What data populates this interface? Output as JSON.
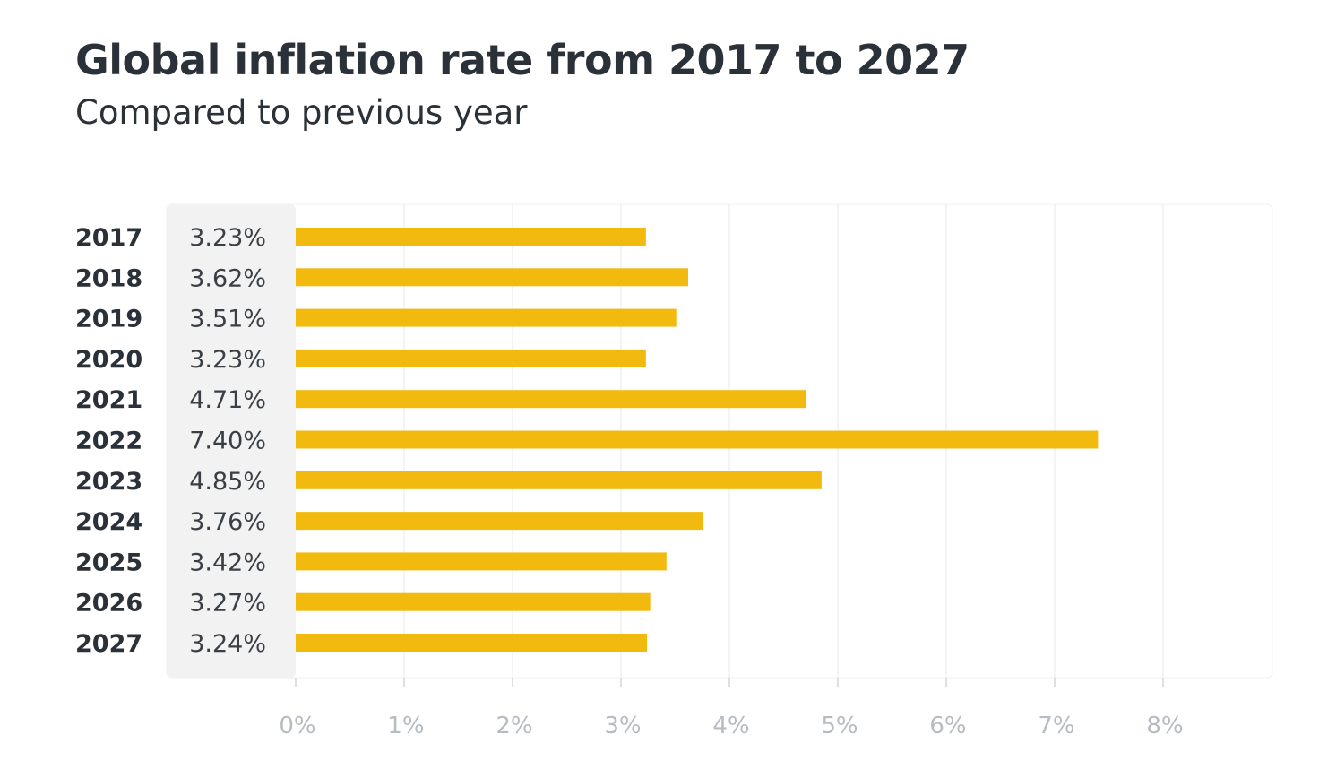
{
  "chart_data": {
    "type": "bar",
    "orientation": "horizontal",
    "title": "Global inflation rate from 2017 to 2027",
    "subtitle": "Compared to previous year",
    "categories": [
      "2017",
      "2018",
      "2019",
      "2020",
      "2021",
      "2022",
      "2023",
      "2024",
      "2025",
      "2026",
      "2027"
    ],
    "values": [
      3.23,
      3.62,
      3.51,
      3.23,
      4.71,
      7.4,
      4.85,
      3.76,
      3.42,
      3.27,
      3.24
    ],
    "value_labels": [
      "3.23%",
      "3.62%",
      "3.51%",
      "3.23%",
      "4.71%",
      "7.40%",
      "4.85%",
      "3.76%",
      "3.42%",
      "3.27%",
      "3.24%"
    ],
    "x_ticks": [
      0,
      1,
      2,
      3,
      4,
      5,
      6,
      7,
      8
    ],
    "x_tick_labels": [
      "0%",
      "1%",
      "2%",
      "3%",
      "4%",
      "5%",
      "6%",
      "7%",
      "8%"
    ],
    "xlim": [
      0,
      8
    ],
    "grid": true,
    "bar_color": "#f2b90f"
  }
}
